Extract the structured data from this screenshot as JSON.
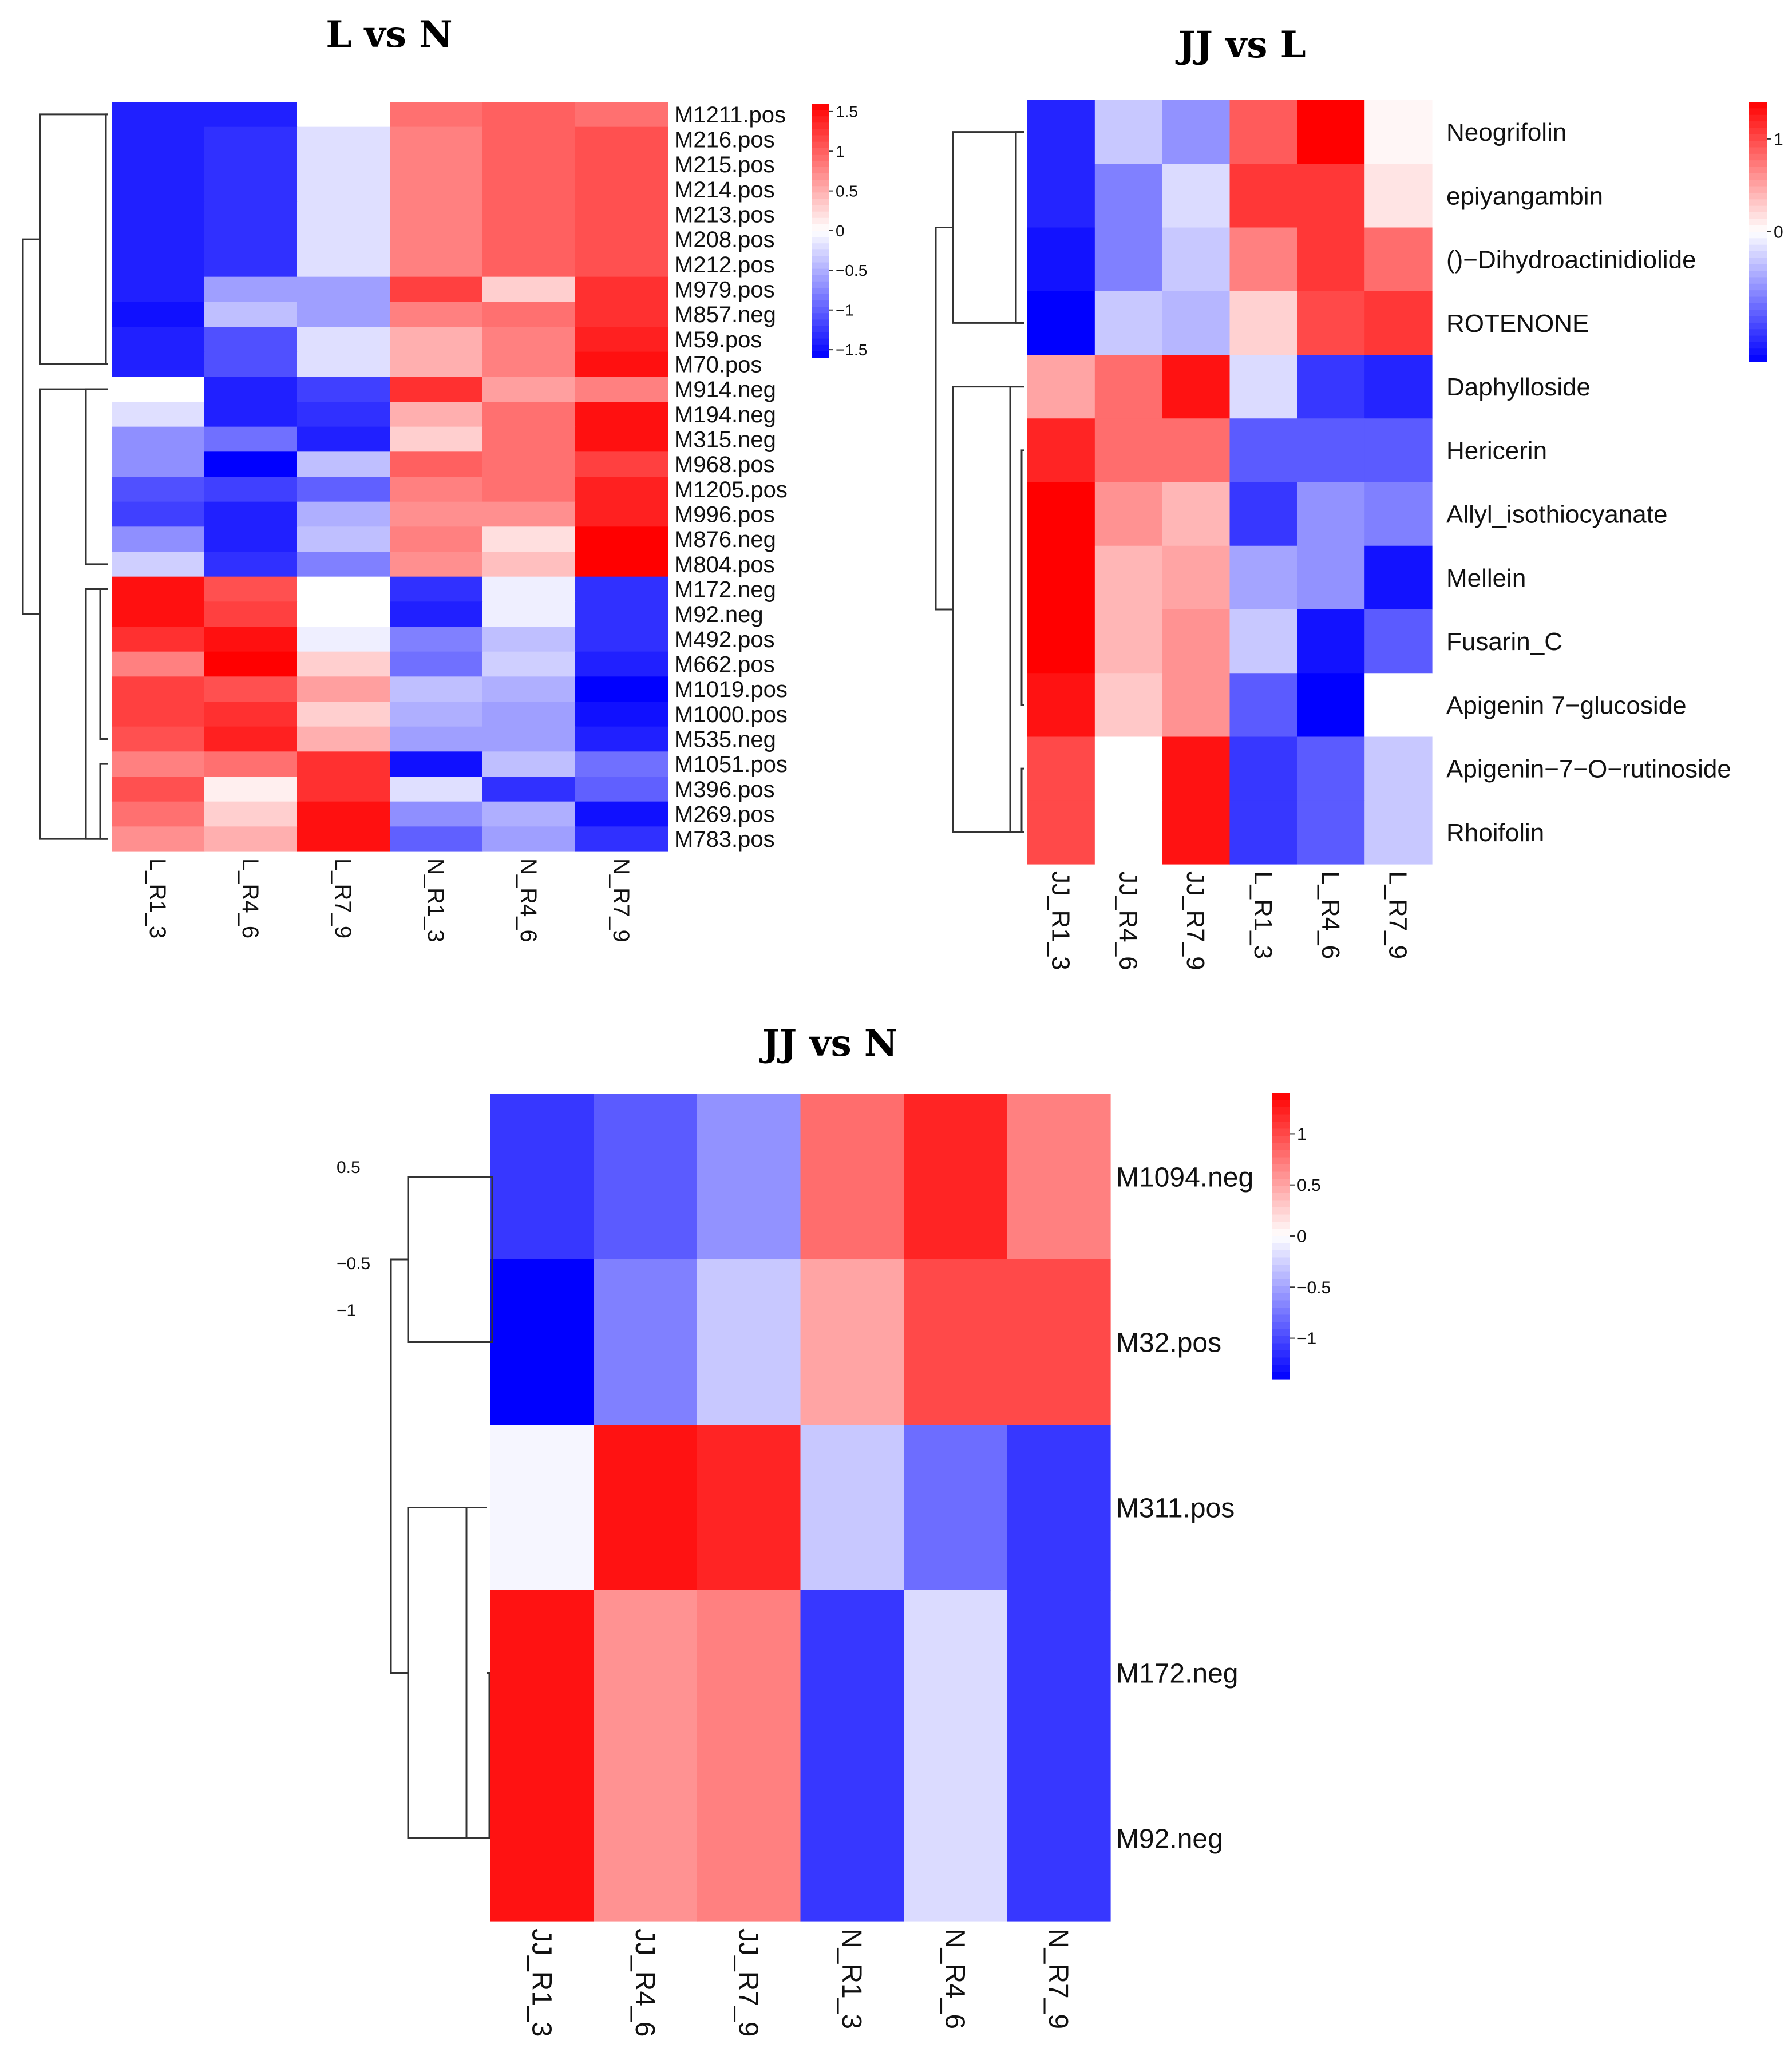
{
  "chart_data": [
    {
      "type": "heatmap",
      "title": "L vs N",
      "columns": [
        "L_R1_3",
        "L_R4_6",
        "L_R7_9",
        "N_R1_3",
        "N_R4_6",
        "N_R7_9"
      ],
      "rows": [
        "M1211.pos",
        "M216.pos",
        "M215.pos",
        "M214.pos",
        "M213.pos",
        "M208.pos",
        "M212.pos",
        "M979.pos",
        "M857.neg",
        "M59.pos",
        "M70.pos",
        "M914.neg",
        "M194.neg",
        "M315.neg",
        "M968.pos",
        "M1205.pos",
        "M996.pos",
        "M876.neg",
        "M804.pos",
        "M172.neg",
        "M92.neg",
        "M492.pos",
        "M662.pos",
        "M1019.pos",
        "M1000.pos",
        "M535.neg",
        "M1051.pos",
        "M396.pos",
        "M269.pos",
        "M783.pos"
      ],
      "values": [
        [
          -1.4,
          -1.4,
          0.0,
          0.9,
          1.0,
          0.9
        ],
        [
          -1.4,
          -1.3,
          -0.2,
          0.8,
          1.0,
          1.1
        ],
        [
          -1.4,
          -1.3,
          -0.2,
          0.8,
          1.0,
          1.1
        ],
        [
          -1.4,
          -1.3,
          -0.2,
          0.8,
          1.0,
          1.1
        ],
        [
          -1.4,
          -1.3,
          -0.2,
          0.8,
          1.0,
          1.1
        ],
        [
          -1.4,
          -1.3,
          -0.2,
          0.8,
          1.0,
          1.1
        ],
        [
          -1.4,
          -1.3,
          -0.2,
          0.8,
          1.0,
          1.1
        ],
        [
          -1.4,
          -0.6,
          -0.6,
          1.2,
          0.3,
          1.3
        ],
        [
          -1.5,
          -0.4,
          -0.6,
          0.8,
          0.9,
          1.3
        ],
        [
          -1.4,
          -1.1,
          -0.2,
          0.5,
          0.8,
          1.4
        ],
        [
          -1.4,
          -1.1,
          -0.2,
          0.5,
          0.8,
          1.5
        ],
        [
          0.0,
          -1.4,
          -1.2,
          1.3,
          0.6,
          0.8
        ],
        [
          -0.2,
          -1.4,
          -1.3,
          0.5,
          0.9,
          1.5
        ],
        [
          -0.7,
          -0.9,
          -1.4,
          0.3,
          0.9,
          1.5
        ],
        [
          -0.7,
          -1.6,
          -0.4,
          1.0,
          0.9,
          1.2
        ],
        [
          -1.1,
          -1.2,
          -1.0,
          0.8,
          0.9,
          1.4
        ],
        [
          -1.2,
          -1.4,
          -0.5,
          0.7,
          0.7,
          1.4
        ],
        [
          -0.7,
          -1.4,
          -0.4,
          0.8,
          0.2,
          1.6
        ],
        [
          -0.3,
          -1.3,
          -0.8,
          0.7,
          0.4,
          1.6
        ],
        [
          1.5,
          1.1,
          0.0,
          -1.3,
          -0.1,
          -1.3
        ],
        [
          1.5,
          1.2,
          0.0,
          -1.4,
          -0.1,
          -1.3
        ],
        [
          1.3,
          1.5,
          -0.1,
          -0.8,
          -0.4,
          -1.3
        ],
        [
          0.8,
          1.6,
          0.3,
          -0.9,
          -0.3,
          -1.4
        ],
        [
          1.2,
          1.1,
          0.6,
          -0.4,
          -0.5,
          -1.6
        ],
        [
          1.2,
          1.3,
          0.3,
          -0.5,
          -0.6,
          -1.5
        ],
        [
          1.1,
          1.4,
          0.5,
          -0.6,
          -0.6,
          -1.4
        ],
        [
          0.8,
          0.9,
          1.3,
          -1.5,
          -0.4,
          -0.9
        ],
        [
          1.1,
          0.1,
          1.3,
          -0.2,
          -1.3,
          -1.0
        ],
        [
          0.9,
          0.3,
          1.5,
          -0.7,
          -0.5,
          -1.5
        ],
        [
          0.7,
          0.5,
          1.5,
          -1.0,
          -0.6,
          -1.3
        ]
      ],
      "legend_ticks": [
        1.5,
        1,
        0.5,
        0,
        -0.5,
        -1,
        -1.5
      ],
      "legend_tick_labels": [
        "1.5",
        "1",
        "0.5",
        "0",
        "−0.5",
        "−1",
        "−1.5"
      ],
      "value_range": [
        -1.6,
        1.6
      ],
      "colors": {
        "low": "#0000ff",
        "mid": "#ffffff",
        "high": "#ff0000"
      }
    },
    {
      "type": "heatmap",
      "title": "JJ vs L",
      "columns": [
        "JJ_R1_3",
        "JJ_R4_6",
        "JJ_R7_9",
        "L_R1_3",
        "L_R4_6",
        "L_R7_9"
      ],
      "rows": [
        "Neogrifolin",
        "epiyangambin",
        "()−Dihydroactinidiolide",
        "ROTENONE",
        "Daphylloside",
        "Hericerin",
        "Allyl_isothiocyanate",
        "Mellein",
        "Fusarin_C",
        "Apigenin 7−glucoside",
        "Apigenin−7−O−rutinoside",
        "Rhoifolin"
      ],
      "values": [
        [
          -1.2,
          -0.3,
          -0.6,
          0.9,
          1.4,
          0.05
        ],
        [
          -1.2,
          -0.7,
          -0.2,
          1.1,
          1.1,
          0.15
        ],
        [
          -1.3,
          -0.7,
          -0.3,
          0.7,
          1.1,
          0.8
        ],
        [
          -1.4,
          -0.3,
          -0.4,
          0.25,
          1.0,
          1.1
        ],
        [
          0.5,
          0.8,
          1.3,
          -0.2,
          -1.1,
          -1.2
        ],
        [
          1.2,
          0.8,
          0.8,
          -0.9,
          -0.9,
          -0.9
        ],
        [
          1.4,
          0.6,
          0.4,
          -1.1,
          -0.6,
          -0.7
        ],
        [
          1.4,
          0.4,
          0.5,
          -0.5,
          -0.6,
          -1.3
        ],
        [
          1.4,
          0.4,
          0.6,
          -0.3,
          -1.3,
          -0.9
        ],
        [
          1.3,
          0.3,
          0.6,
          -0.9,
          -1.5,
          0.0
        ],
        [
          1.0,
          0.0,
          1.3,
          -1.1,
          -0.9,
          -0.3
        ],
        [
          1.0,
          0.0,
          1.3,
          -1.1,
          -0.9,
          -0.3
        ]
      ],
      "legend_ticks": [
        1,
        0
      ],
      "legend_tick_labels": [
        "1",
        "0"
      ],
      "value_range": [
        -1.4,
        1.4
      ],
      "colors": {
        "low": "#0000ff",
        "mid": "#ffffff",
        "high": "#ff0000"
      }
    },
    {
      "type": "heatmap",
      "title": "JJ vs N",
      "columns": [
        "JJ_R1_3",
        "JJ_R4_6",
        "JJ_R7_9",
        "N_R1_3",
        "N_R4_6",
        "N_R7_9"
      ],
      "rows": [
        "M1094.neg",
        "M32.pos",
        "M311.pos",
        "M172.neg",
        "M92.neg"
      ],
      "values": [
        [
          -1.1,
          -0.9,
          -0.6,
          0.8,
          1.2,
          0.7
        ],
        [
          -1.4,
          -0.7,
          -0.3,
          0.5,
          1.0,
          1.0
        ],
        [
          -0.05,
          1.3,
          1.2,
          -0.3,
          -0.8,
          -1.1
        ],
        [
          1.3,
          0.6,
          0.7,
          -1.1,
          -0.2,
          -1.1
        ],
        [
          1.3,
          0.6,
          0.7,
          -1.1,
          -0.2,
          -1.1
        ]
      ],
      "legend_ticks": [
        1,
        0.5,
        0,
        -0.5,
        -1
      ],
      "legend_tick_labels": [
        "1",
        "0.5",
        "0",
        "−0.5",
        "−1"
      ],
      "value_range": [
        -1.4,
        1.4
      ],
      "colors": {
        "low": "#0000ff",
        "mid": "#ffffff",
        "high": "#ff0000"
      },
      "stray_labels": [
        "0.5",
        "−0.5",
        "−1"
      ]
    }
  ]
}
